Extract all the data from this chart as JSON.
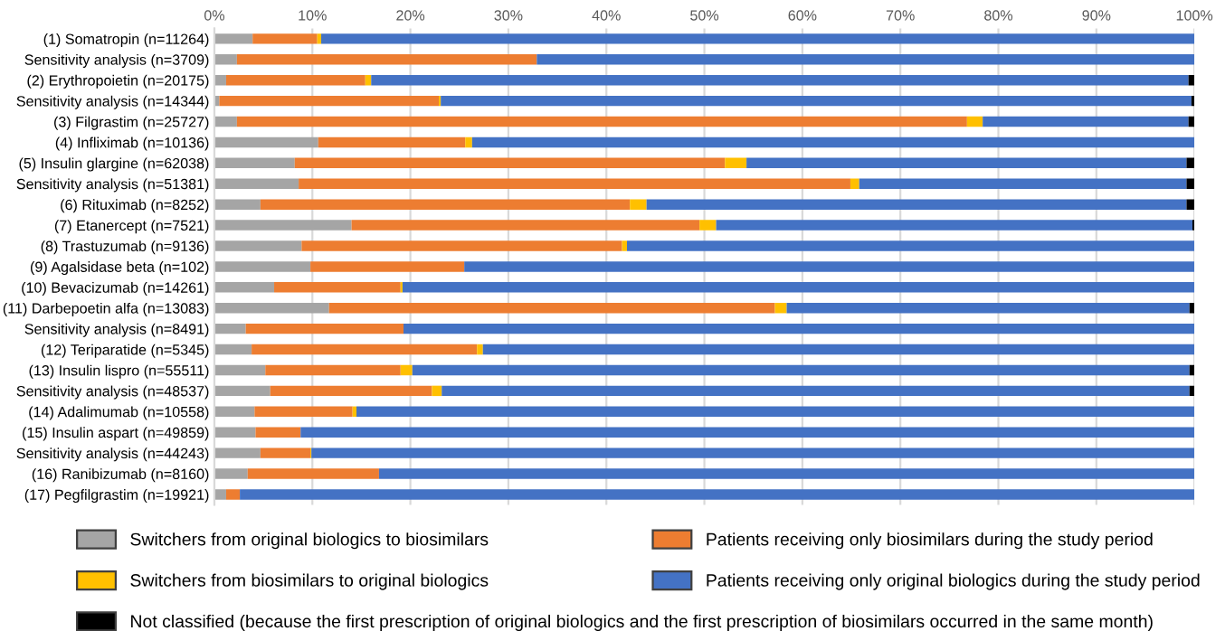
{
  "chart_data": {
    "type": "bar",
    "orientation": "horizontal",
    "stacked": true,
    "categories": [
      "(1) Somatropin (n=11264)",
      "Sensitivity analysis (n=3709)",
      "(2) Erythropoietin (n=20175)",
      "Sensitivity analysis (n=14344)",
      "(3) Filgrastim (n=25727)",
      "(4) Infliximab (n=10136)",
      "(5) Insulin glargine (n=62038)",
      "Sensitivity analysis (n=51381)",
      "(6) Rituximab (n=8252)",
      "(7) Etanercept (n=7521)",
      "(8) Trastuzumab (n=9136)",
      "(9) Agalsidase beta (n=102)",
      "(10) Bevacizumab (n=14261)",
      "(11) Darbepoetin alfa (n=13083)",
      "Sensitivity analysis (n=8491)",
      "(12) Teriparatide (n=5345)",
      "(13) Insulin lispro (n=55511)",
      "Sensitivity analysis (n=48537)",
      "(14) Adalimumab (n=10558)",
      "(15) Insulin aspart (n=49859)",
      "Sensitivity analysis (n=44243)",
      "(16) Ranibizumab (n=8160)",
      "(17) Pegfilgrastim (n=19921)"
    ],
    "series": [
      {
        "name": "Switchers from original biologics to biosimilars",
        "color": "#a5a5a5",
        "values": [
          3.9,
          2.3,
          1.2,
          0.5,
          2.3,
          10.6,
          8.2,
          8.6,
          4.7,
          14.0,
          8.9,
          9.8,
          6.1,
          11.7,
          3.2,
          3.8,
          5.2,
          5.7,
          4.1,
          4.2,
          4.7,
          3.4,
          1.2
        ]
      },
      {
        "name": "Patients receiving only biosimilars during the study period",
        "color": "#ed7d31",
        "values": [
          6.6,
          30.6,
          14.2,
          22.4,
          74.5,
          15.0,
          43.9,
          56.3,
          37.7,
          35.5,
          32.7,
          15.7,
          12.9,
          45.5,
          16.1,
          23.0,
          13.8,
          16.5,
          10.0,
          4.6,
          5.1,
          13.4,
          1.4
        ]
      },
      {
        "name": "Switchers from biosimilars to original biologics",
        "color": "#ffc000",
        "values": [
          0.4,
          0,
          0.6,
          0.2,
          1.6,
          0.7,
          2.2,
          0.9,
          1.7,
          1.7,
          0.5,
          0,
          0.2,
          1.2,
          0,
          0.6,
          1.2,
          1.0,
          0.4,
          0,
          0.1,
          0,
          0
        ]
      },
      {
        "name": "Patients receiving only original biologics during the study period",
        "color": "#4472c4",
        "values": [
          89.1,
          67.1,
          83.4,
          76.6,
          21.0,
          73.7,
          44.9,
          33.4,
          55.1,
          48.6,
          57.9,
          74.5,
          80.8,
          41.1,
          80.7,
          72.6,
          79.3,
          76.3,
          85.5,
          91.2,
          90.1,
          83.2,
          97.4
        ]
      },
      {
        "name": "Not classified (because the first prescription of original biologics and the first prescription of biosimilars occurred in the same month)",
        "color": "#000000",
        "values": [
          0,
          0,
          0.6,
          0.3,
          0.6,
          0,
          0.8,
          0.8,
          0.8,
          0.2,
          0,
          0,
          0,
          0.5,
          0,
          0,
          0.5,
          0.5,
          0,
          0,
          0,
          0,
          0
        ]
      }
    ],
    "xlim": [
      0,
      100
    ],
    "xticks": [
      {
        "value": 0,
        "label": "0%"
      },
      {
        "value": 10,
        "label": "10%"
      },
      {
        "value": 20,
        "label": "20%"
      },
      {
        "value": 30,
        "label": "30%"
      },
      {
        "value": 40,
        "label": "40%"
      },
      {
        "value": 50,
        "label": "50%"
      },
      {
        "value": 60,
        "label": "60%"
      },
      {
        "value": 70,
        "label": "70%"
      },
      {
        "value": 80,
        "label": "80%"
      },
      {
        "value": 90,
        "label": "90%"
      },
      {
        "value": 100,
        "label": "100%"
      }
    ],
    "grid": "x",
    "legend": "bottom"
  }
}
